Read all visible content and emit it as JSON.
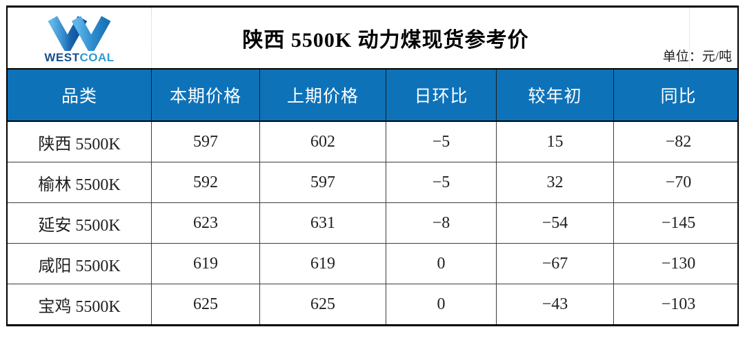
{
  "brand": {
    "wordmark_west": "WEST",
    "wordmark_coal": "COAL",
    "logo_icon": "westcoal-w-logo"
  },
  "header": {
    "title": "陕西 5500K 动力煤现货参考价",
    "unit_label": "单位：元/吨"
  },
  "table": {
    "columns": [
      "品类",
      "本期价格",
      "上期价格",
      "日环比",
      "较年初",
      "同比"
    ],
    "rows": [
      {
        "category": "陕西 5500K",
        "values": [
          "597",
          "602",
          "−5",
          "15",
          "−82"
        ]
      },
      {
        "category": "榆林 5500K",
        "values": [
          "592",
          "597",
          "−5",
          "32",
          "−70"
        ]
      },
      {
        "category": "延安 5500K",
        "values": [
          "623",
          "631",
          "−8",
          "−54",
          "−145"
        ]
      },
      {
        "category": "咸阳 5500K",
        "values": [
          "619",
          "619",
          "0",
          "−67",
          "−130"
        ]
      },
      {
        "category": "宝鸡 5500K",
        "values": [
          "625",
          "625",
          "0",
          "−43",
          "−103"
        ]
      }
    ]
  },
  "colors": {
    "header_blue": "#0e72b8",
    "logo_light_blue": "#5cb5e8",
    "logo_dark_blue": "#0d4f97",
    "wordmark_west_color": "#17508f",
    "wordmark_coal_color": "#2f9ad2",
    "border_black": "#000000",
    "grid_line": "#3c3c3c"
  }
}
